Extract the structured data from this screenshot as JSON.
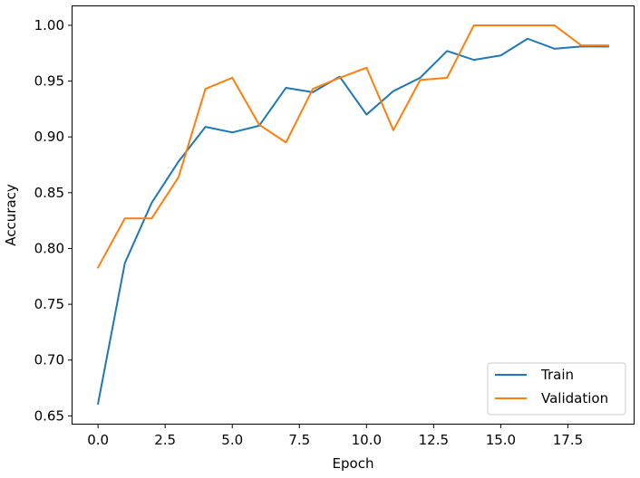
{
  "chart_data": {
    "type": "line",
    "title": "",
    "xlabel": "Epoch",
    "ylabel": "Accuracy",
    "xlim": [
      -0.95,
      19.95
    ],
    "ylim": [
      0.643,
      1.017
    ],
    "xticks": [
      0.0,
      2.5,
      5.0,
      7.5,
      10.0,
      12.5,
      15.0,
      17.5
    ],
    "xtick_labels": [
      "0.0",
      "2.5",
      "5.0",
      "7.5",
      "10.0",
      "12.5",
      "15.0",
      "17.5"
    ],
    "yticks": [
      0.65,
      0.7,
      0.75,
      0.8,
      0.85,
      0.9,
      0.95,
      1.0
    ],
    "ytick_labels": [
      "0.65",
      "0.70",
      "0.75",
      "0.80",
      "0.85",
      "0.90",
      "0.95",
      "1.00"
    ],
    "grid": false,
    "legend_position": "lower-right",
    "x": [
      0,
      1,
      2,
      3,
      4,
      5,
      6,
      7,
      8,
      9,
      10,
      11,
      12,
      13,
      14,
      15,
      16,
      17,
      18,
      19
    ],
    "series": [
      {
        "name": "Train",
        "color": "#1f77b4",
        "values": [
          0.661,
          0.787,
          0.841,
          0.878,
          0.909,
          0.904,
          0.91,
          0.944,
          0.94,
          0.954,
          0.92,
          0.941,
          0.953,
          0.977,
          0.969,
          0.973,
          0.988,
          0.979,
          0.981,
          0.981
        ]
      },
      {
        "name": "Validation",
        "color": "#ff7f0e",
        "values": [
          0.783,
          0.827,
          0.827,
          0.864,
          0.943,
          0.953,
          0.911,
          0.895,
          0.943,
          0.953,
          0.962,
          0.906,
          0.951,
          0.953,
          1.0,
          1.0,
          1.0,
          1.0,
          0.982,
          0.982
        ]
      }
    ]
  }
}
